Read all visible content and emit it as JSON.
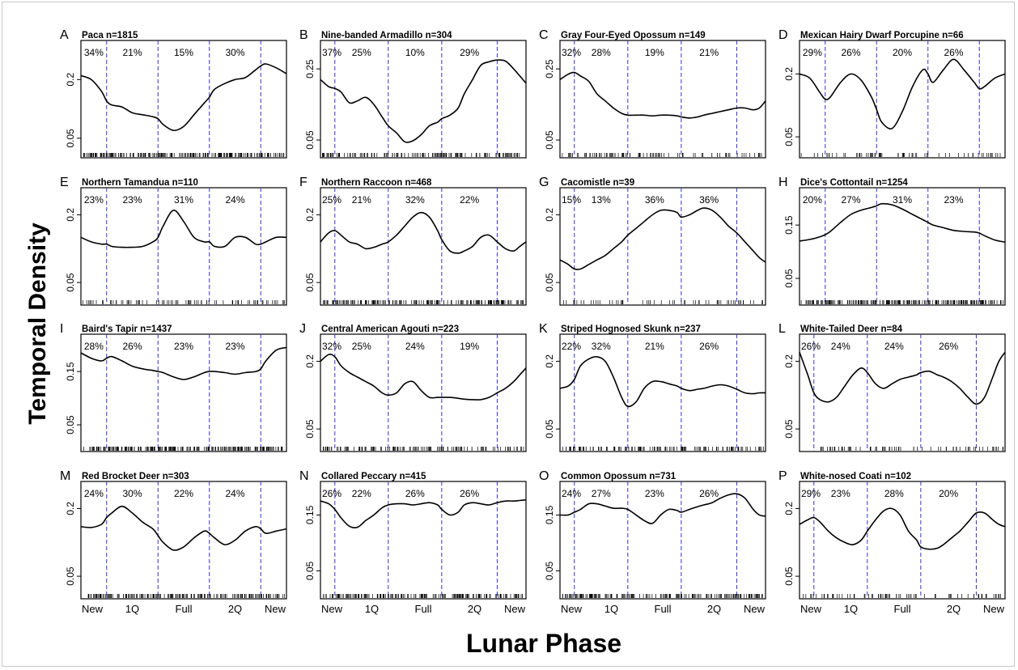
{
  "figure": {
    "ylabel": "Temporal Density",
    "xlabel": "Lunar Phase",
    "xticks": [
      "New",
      "1Q",
      "Full",
      "2Q",
      "New"
    ],
    "curve_color": "#000000",
    "divider_color": "#3333cc",
    "ytick_sets": [
      [
        "0.05",
        "0.2"
      ],
      [
        "0.05",
        "0.25"
      ],
      [
        "0.05",
        "0.15"
      ]
    ]
  },
  "chart_data": [
    {
      "type": "line",
      "letter": "A",
      "title": "Paca n=1815",
      "pcts": [
        "34%",
        "21%",
        "15%",
        "30%"
      ],
      "dividers": [
        0.125,
        0.375,
        0.625,
        0.875
      ],
      "yt": 0,
      "ylim": [
        0,
        0.3
      ],
      "rug": 1.0,
      "x": [
        0,
        0.05,
        0.1,
        0.125,
        0.15,
        0.2,
        0.25,
        0.3,
        0.35,
        0.375,
        0.4,
        0.45,
        0.5,
        0.55,
        0.6,
        0.625,
        0.65,
        0.7,
        0.75,
        0.8,
        0.85,
        0.875,
        0.9,
        0.95,
        1
      ],
      "y": [
        0.21,
        0.2,
        0.17,
        0.145,
        0.135,
        0.13,
        0.115,
        0.11,
        0.105,
        0.1,
        0.085,
        0.07,
        0.08,
        0.11,
        0.14,
        0.155,
        0.175,
        0.19,
        0.2,
        0.205,
        0.225,
        0.235,
        0.24,
        0.23,
        0.215
      ]
    },
    {
      "type": "line",
      "letter": "B",
      "title": "Nine-banded Armadillo n=304",
      "pcts": [
        "37%",
        "25%",
        "10%",
        "29%"
      ],
      "dividers": [
        0.07,
        0.33,
        0.59,
        0.86
      ],
      "yt": 1,
      "ylim": [
        0,
        0.33
      ],
      "rug": 0.6,
      "x": [
        0,
        0.04,
        0.07,
        0.1,
        0.14,
        0.18,
        0.22,
        0.26,
        0.3,
        0.33,
        0.37,
        0.41,
        0.45,
        0.49,
        0.53,
        0.57,
        0.59,
        0.63,
        0.67,
        0.7,
        0.74,
        0.78,
        0.82,
        0.86,
        0.9,
        0.94,
        0.97,
        1
      ],
      "y": [
        0.22,
        0.2,
        0.195,
        0.185,
        0.155,
        0.16,
        0.17,
        0.15,
        0.115,
        0.09,
        0.07,
        0.045,
        0.048,
        0.065,
        0.09,
        0.1,
        0.11,
        0.12,
        0.14,
        0.18,
        0.22,
        0.26,
        0.27,
        0.275,
        0.272,
        0.25,
        0.23,
        0.21
      ]
    },
    {
      "type": "line",
      "letter": "C",
      "title": "Gray Four-Eyed Opossum n=149",
      "pcts": [
        "32%",
        "28%",
        "19%",
        "21%"
      ],
      "dividers": [
        0.07,
        0.33,
        0.59,
        0.86
      ],
      "yt": 1,
      "ylim": [
        0,
        0.33
      ],
      "rug": 0.3,
      "x": [
        0,
        0.04,
        0.07,
        0.1,
        0.14,
        0.18,
        0.22,
        0.26,
        0.3,
        0.33,
        0.37,
        0.41,
        0.45,
        0.49,
        0.53,
        0.57,
        0.59,
        0.63,
        0.67,
        0.7,
        0.74,
        0.78,
        0.82,
        0.86,
        0.9,
        0.94,
        0.97,
        1
      ],
      "y": [
        0.22,
        0.235,
        0.24,
        0.23,
        0.215,
        0.18,
        0.16,
        0.14,
        0.125,
        0.12,
        0.12,
        0.12,
        0.118,
        0.12,
        0.12,
        0.118,
        0.115,
        0.112,
        0.115,
        0.12,
        0.125,
        0.13,
        0.135,
        0.14,
        0.14,
        0.135,
        0.14,
        0.16
      ]
    },
    {
      "type": "line",
      "letter": "D",
      "title": "Mexican Hairy Dwarf Porcupine n=66",
      "pcts": [
        "29%",
        "26%",
        "20%",
        "26%"
      ],
      "dividers": [
        0.125,
        0.375,
        0.625,
        0.875
      ],
      "yt": 0,
      "ylim": [
        0,
        0.28
      ],
      "rug": 0.15,
      "x": [
        0,
        0.05,
        0.1,
        0.125,
        0.15,
        0.2,
        0.25,
        0.3,
        0.35,
        0.375,
        0.4,
        0.45,
        0.5,
        0.55,
        0.6,
        0.625,
        0.65,
        0.7,
        0.75,
        0.8,
        0.85,
        0.875,
        0.9,
        0.95,
        1
      ],
      "y": [
        0.2,
        0.19,
        0.155,
        0.14,
        0.145,
        0.18,
        0.2,
        0.185,
        0.145,
        0.115,
        0.085,
        0.07,
        0.11,
        0.17,
        0.21,
        0.2,
        0.18,
        0.21,
        0.235,
        0.21,
        0.18,
        0.165,
        0.17,
        0.19,
        0.2
      ]
    },
    {
      "type": "line",
      "letter": "E",
      "title": "Northern Tamandua n=110",
      "pcts": [
        "23%",
        "23%",
        "31%",
        "24%"
      ],
      "dividers": [
        0.125,
        0.375,
        0.625,
        0.875
      ],
      "yt": 0,
      "ylim": [
        0,
        0.26
      ],
      "rug": 0.25,
      "x": [
        0,
        0.05,
        0.1,
        0.125,
        0.15,
        0.2,
        0.25,
        0.3,
        0.35,
        0.375,
        0.4,
        0.45,
        0.5,
        0.55,
        0.6,
        0.625,
        0.65,
        0.7,
        0.75,
        0.8,
        0.85,
        0.875,
        0.9,
        0.95,
        1
      ],
      "y": [
        0.15,
        0.14,
        0.135,
        0.135,
        0.13,
        0.128,
        0.128,
        0.13,
        0.14,
        0.15,
        0.175,
        0.21,
        0.185,
        0.15,
        0.14,
        0.14,
        0.13,
        0.13,
        0.15,
        0.15,
        0.135,
        0.135,
        0.14,
        0.15,
        0.15
      ]
    },
    {
      "type": "line",
      "letter": "F",
      "title": "Northern Raccoon n=468",
      "pcts": [
        "25%",
        "21%",
        "32%",
        "22%"
      ],
      "dividers": [
        0.07,
        0.33,
        0.59,
        0.86
      ],
      "yt": 0,
      "ylim": [
        0,
        0.26
      ],
      "rug": 0.8,
      "x": [
        0,
        0.04,
        0.07,
        0.1,
        0.14,
        0.18,
        0.22,
        0.26,
        0.3,
        0.33,
        0.37,
        0.41,
        0.45,
        0.49,
        0.53,
        0.57,
        0.59,
        0.63,
        0.67,
        0.7,
        0.74,
        0.78,
        0.82,
        0.86,
        0.9,
        0.94,
        0.97,
        1
      ],
      "y": [
        0.14,
        0.16,
        0.165,
        0.155,
        0.14,
        0.135,
        0.125,
        0.128,
        0.135,
        0.14,
        0.155,
        0.175,
        0.195,
        0.205,
        0.195,
        0.165,
        0.145,
        0.12,
        0.115,
        0.12,
        0.13,
        0.15,
        0.155,
        0.14,
        0.125,
        0.12,
        0.13,
        0.14
      ]
    },
    {
      "type": "line",
      "letter": "G",
      "title": "Cacomistle n=39",
      "pcts": [
        "15%",
        "13%",
        "36%",
        "36%"
      ],
      "dividers": [
        0.07,
        0.33,
        0.59,
        0.86
      ],
      "yt": 0,
      "ylim": [
        0,
        0.26
      ],
      "rug": 0.1,
      "x": [
        0,
        0.04,
        0.07,
        0.1,
        0.14,
        0.18,
        0.22,
        0.26,
        0.3,
        0.33,
        0.37,
        0.41,
        0.45,
        0.49,
        0.53,
        0.57,
        0.59,
        0.63,
        0.67,
        0.7,
        0.74,
        0.78,
        0.82,
        0.86,
        0.9,
        0.94,
        0.97,
        1
      ],
      "y": [
        0.1,
        0.09,
        0.08,
        0.08,
        0.09,
        0.1,
        0.11,
        0.125,
        0.14,
        0.155,
        0.17,
        0.185,
        0.2,
        0.21,
        0.21,
        0.205,
        0.195,
        0.2,
        0.21,
        0.215,
        0.21,
        0.195,
        0.175,
        0.16,
        0.14,
        0.12,
        0.105,
        0.095
      ]
    },
    {
      "type": "line",
      "letter": "H",
      "title": "Dice's Cottontail n=1254",
      "pcts": [
        "20%",
        "27%",
        "31%",
        "23%"
      ],
      "dividers": [
        0.125,
        0.375,
        0.625,
        0.875
      ],
      "yt": 2,
      "ylim": [
        0,
        0.22
      ],
      "rug": 1.0,
      "x": [
        0,
        0.05,
        0.1,
        0.125,
        0.15,
        0.2,
        0.25,
        0.3,
        0.35,
        0.375,
        0.4,
        0.45,
        0.5,
        0.55,
        0.6,
        0.625,
        0.65,
        0.7,
        0.75,
        0.8,
        0.85,
        0.875,
        0.9,
        0.95,
        1
      ],
      "y": [
        0.12,
        0.123,
        0.128,
        0.132,
        0.138,
        0.155,
        0.17,
        0.178,
        0.183,
        0.186,
        0.19,
        0.188,
        0.18,
        0.17,
        0.16,
        0.155,
        0.15,
        0.145,
        0.14,
        0.138,
        0.137,
        0.135,
        0.13,
        0.122,
        0.118
      ]
    },
    {
      "type": "line",
      "letter": "I",
      "title": "Baird's Tapir n=1437",
      "pcts": [
        "28%",
        "26%",
        "23%",
        "23%"
      ],
      "dividers": [
        0.125,
        0.375,
        0.625,
        0.875
      ],
      "yt": 2,
      "ylim": [
        0,
        0.22
      ],
      "rug": 1.0,
      "x": [
        0,
        0.05,
        0.1,
        0.125,
        0.15,
        0.2,
        0.25,
        0.3,
        0.35,
        0.375,
        0.4,
        0.45,
        0.5,
        0.55,
        0.6,
        0.625,
        0.65,
        0.7,
        0.75,
        0.8,
        0.85,
        0.875,
        0.9,
        0.95,
        1
      ],
      "y": [
        0.185,
        0.175,
        0.17,
        0.175,
        0.178,
        0.17,
        0.16,
        0.155,
        0.152,
        0.15,
        0.148,
        0.14,
        0.135,
        0.14,
        0.148,
        0.15,
        0.15,
        0.148,
        0.145,
        0.148,
        0.15,
        0.155,
        0.17,
        0.19,
        0.195
      ]
    },
    {
      "type": "line",
      "letter": "J",
      "title": "Central American Agouti n=223",
      "pcts": [
        "32%",
        "25%",
        "24%",
        "19%"
      ],
      "dividers": [
        0.07,
        0.33,
        0.59,
        0.86
      ],
      "yt": 0,
      "ylim": [
        0,
        0.26
      ],
      "rug": 0.5,
      "x": [
        0,
        0.04,
        0.07,
        0.1,
        0.14,
        0.18,
        0.22,
        0.26,
        0.3,
        0.33,
        0.37,
        0.41,
        0.45,
        0.49,
        0.53,
        0.57,
        0.59,
        0.63,
        0.67,
        0.7,
        0.74,
        0.78,
        0.82,
        0.86,
        0.9,
        0.94,
        0.97,
        1
      ],
      "y": [
        0.2,
        0.215,
        0.21,
        0.19,
        0.175,
        0.165,
        0.155,
        0.145,
        0.13,
        0.125,
        0.13,
        0.15,
        0.155,
        0.135,
        0.12,
        0.12,
        0.12,
        0.12,
        0.118,
        0.116,
        0.115,
        0.115,
        0.12,
        0.13,
        0.14,
        0.155,
        0.17,
        0.185
      ]
    },
    {
      "type": "line",
      "letter": "K",
      "title": "Striped Hognosed Skunk n=237",
      "pcts": [
        "22%",
        "32%",
        "21%",
        "26%"
      ],
      "dividers": [
        0.07,
        0.33,
        0.59,
        0.86
      ],
      "yt": 0,
      "ylim": [
        0,
        0.26
      ],
      "rug": 0.5,
      "x": [
        0,
        0.04,
        0.07,
        0.1,
        0.14,
        0.18,
        0.22,
        0.26,
        0.3,
        0.33,
        0.37,
        0.41,
        0.45,
        0.49,
        0.53,
        0.57,
        0.59,
        0.63,
        0.67,
        0.7,
        0.74,
        0.78,
        0.82,
        0.86,
        0.9,
        0.94,
        0.97,
        1
      ],
      "y": [
        0.14,
        0.145,
        0.16,
        0.19,
        0.205,
        0.21,
        0.2,
        0.165,
        0.12,
        0.1,
        0.11,
        0.14,
        0.155,
        0.155,
        0.15,
        0.145,
        0.14,
        0.135,
        0.138,
        0.14,
        0.145,
        0.148,
        0.145,
        0.138,
        0.13,
        0.128,
        0.13,
        0.13
      ]
    },
    {
      "type": "line",
      "letter": "L",
      "title": "White-Tailed Deer n=84",
      "pcts": [
        "26%",
        "24%",
        "24%",
        "26%"
      ],
      "dividers": [
        0.07,
        0.33,
        0.59,
        0.86
      ],
      "yt": 0,
      "ylim": [
        0,
        0.26
      ],
      "rug": 0.2,
      "x": [
        0,
        0.04,
        0.07,
        0.1,
        0.14,
        0.18,
        0.22,
        0.26,
        0.3,
        0.33,
        0.37,
        0.41,
        0.45,
        0.49,
        0.53,
        0.57,
        0.59,
        0.63,
        0.67,
        0.7,
        0.74,
        0.78,
        0.82,
        0.86,
        0.9,
        0.94,
        0.97,
        1
      ],
      "y": [
        0.22,
        0.17,
        0.13,
        0.115,
        0.11,
        0.12,
        0.145,
        0.17,
        0.185,
        0.175,
        0.15,
        0.14,
        0.15,
        0.16,
        0.165,
        0.17,
        0.175,
        0.178,
        0.17,
        0.165,
        0.155,
        0.14,
        0.12,
        0.105,
        0.12,
        0.165,
        0.2,
        0.22
      ]
    },
    {
      "type": "line",
      "letter": "M",
      "title": "Red Brocket Deer n=303",
      "pcts": [
        "24%",
        "30%",
        "22%",
        "24%"
      ],
      "dividers": [
        0.125,
        0.375,
        0.625,
        0.875
      ],
      "yt": 0,
      "ylim": [
        0,
        0.26
      ],
      "rug": 0.8,
      "x": [
        0,
        0.05,
        0.1,
        0.125,
        0.15,
        0.2,
        0.25,
        0.3,
        0.35,
        0.375,
        0.4,
        0.45,
        0.5,
        0.55,
        0.6,
        0.625,
        0.65,
        0.7,
        0.75,
        0.8,
        0.85,
        0.875,
        0.9,
        0.95,
        1
      ],
      "y": [
        0.16,
        0.158,
        0.165,
        0.18,
        0.19,
        0.205,
        0.19,
        0.17,
        0.155,
        0.14,
        0.125,
        0.108,
        0.115,
        0.135,
        0.15,
        0.145,
        0.135,
        0.12,
        0.13,
        0.15,
        0.16,
        0.155,
        0.145,
        0.15,
        0.155
      ]
    },
    {
      "type": "line",
      "letter": "N",
      "title": "Collared Peccary n=415",
      "pcts": [
        "26%",
        "22%",
        "26%",
        "26%"
      ],
      "dividers": [
        0.07,
        0.33,
        0.59,
        0.86
      ],
      "yt": 2,
      "ylim": [
        0,
        0.21
      ],
      "rug": 0.8,
      "x": [
        0,
        0.04,
        0.07,
        0.1,
        0.14,
        0.18,
        0.22,
        0.26,
        0.3,
        0.33,
        0.37,
        0.41,
        0.45,
        0.49,
        0.53,
        0.57,
        0.59,
        0.63,
        0.67,
        0.7,
        0.74,
        0.78,
        0.82,
        0.86,
        0.9,
        0.94,
        0.97,
        1
      ],
      "y": [
        0.175,
        0.17,
        0.16,
        0.145,
        0.13,
        0.128,
        0.14,
        0.15,
        0.163,
        0.168,
        0.17,
        0.17,
        0.168,
        0.17,
        0.172,
        0.168,
        0.16,
        0.15,
        0.155,
        0.168,
        0.172,
        0.17,
        0.168,
        0.172,
        0.175,
        0.175,
        0.176,
        0.177
      ]
    },
    {
      "type": "line",
      "letter": "O",
      "title": "Common Opossum n=731",
      "pcts": [
        "24%",
        "27%",
        "23%",
        "26%"
      ],
      "dividers": [
        0.07,
        0.33,
        0.59,
        0.86
      ],
      "yt": 2,
      "ylim": [
        0,
        0.21
      ],
      "rug": 0.8,
      "x": [
        0,
        0.04,
        0.07,
        0.1,
        0.14,
        0.18,
        0.22,
        0.26,
        0.3,
        0.33,
        0.37,
        0.41,
        0.45,
        0.49,
        0.53,
        0.57,
        0.59,
        0.63,
        0.67,
        0.7,
        0.74,
        0.78,
        0.82,
        0.86,
        0.9,
        0.94,
        0.97,
        1
      ],
      "y": [
        0.15,
        0.15,
        0.155,
        0.16,
        0.17,
        0.17,
        0.166,
        0.162,
        0.162,
        0.16,
        0.15,
        0.14,
        0.135,
        0.15,
        0.16,
        0.158,
        0.155,
        0.16,
        0.165,
        0.168,
        0.172,
        0.18,
        0.186,
        0.188,
        0.18,
        0.16,
        0.15,
        0.148
      ]
    },
    {
      "type": "line",
      "letter": "P",
      "title": "White-nosed Coati n=102",
      "pcts": [
        "29%",
        "23%",
        "28%",
        "20%"
      ],
      "dividers": [
        0.07,
        0.33,
        0.59,
        0.86
      ],
      "yt": 0,
      "ylim": [
        0,
        0.26
      ],
      "rug": 0.2,
      "x": [
        0,
        0.04,
        0.07,
        0.1,
        0.14,
        0.18,
        0.22,
        0.26,
        0.3,
        0.33,
        0.37,
        0.41,
        0.45,
        0.49,
        0.53,
        0.57,
        0.59,
        0.63,
        0.67,
        0.7,
        0.74,
        0.78,
        0.82,
        0.86,
        0.9,
        0.94,
        0.97,
        1
      ],
      "y": [
        0.165,
        0.175,
        0.18,
        0.17,
        0.15,
        0.135,
        0.125,
        0.12,
        0.13,
        0.15,
        0.175,
        0.195,
        0.2,
        0.185,
        0.15,
        0.13,
        0.115,
        0.11,
        0.112,
        0.12,
        0.135,
        0.15,
        0.17,
        0.19,
        0.19,
        0.175,
        0.165,
        0.16
      ]
    }
  ]
}
